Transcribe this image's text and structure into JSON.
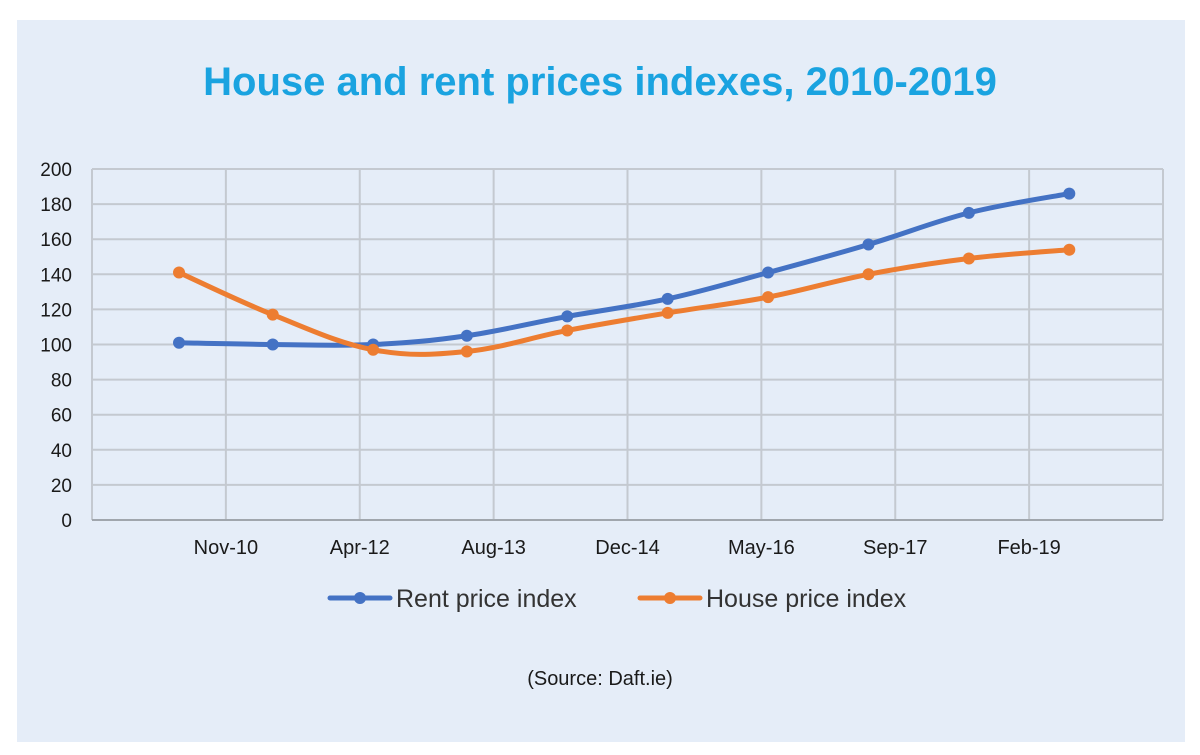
{
  "chart_data": {
    "type": "line",
    "title": "House and rent prices indexes, 2010-2019",
    "source": "(Source: Daft.ie)",
    "xlabel": "",
    "ylabel": "",
    "ylim": [
      0,
      200
    ],
    "yticks": [
      0,
      20,
      40,
      60,
      80,
      100,
      120,
      140,
      160,
      180,
      200
    ],
    "categories": [
      "Nov-10",
      "Apr-12",
      "Aug-13",
      "Dec-14",
      "May-16",
      "Sep-17",
      "Feb-19"
    ],
    "grid": true,
    "legend_position": "bottom",
    "series": [
      {
        "name": "Rent price index",
        "color": "#4472c4",
        "points": [
          {
            "x": 0.65,
            "y": 101
          },
          {
            "x": 1.35,
            "y": 100
          },
          {
            "x": 2.1,
            "y": 100
          },
          {
            "x": 2.8,
            "y": 105
          },
          {
            "x": 3.55,
            "y": 116
          },
          {
            "x": 4.3,
            "y": 126
          },
          {
            "x": 5.05,
            "y": 141
          },
          {
            "x": 5.8,
            "y": 157
          },
          {
            "x": 6.55,
            "y": 175
          },
          {
            "x": 7.3,
            "y": 186
          }
        ]
      },
      {
        "name": "House price index",
        "color": "#ed7d31",
        "points": [
          {
            "x": 0.65,
            "y": 141
          },
          {
            "x": 1.35,
            "y": 117
          },
          {
            "x": 2.1,
            "y": 97
          },
          {
            "x": 2.8,
            "y": 96
          },
          {
            "x": 3.55,
            "y": 108
          },
          {
            "x": 4.3,
            "y": 118
          },
          {
            "x": 5.05,
            "y": 127
          },
          {
            "x": 5.8,
            "y": 140
          },
          {
            "x": 6.55,
            "y": 149
          },
          {
            "x": 7.3,
            "y": 154
          }
        ]
      }
    ]
  }
}
